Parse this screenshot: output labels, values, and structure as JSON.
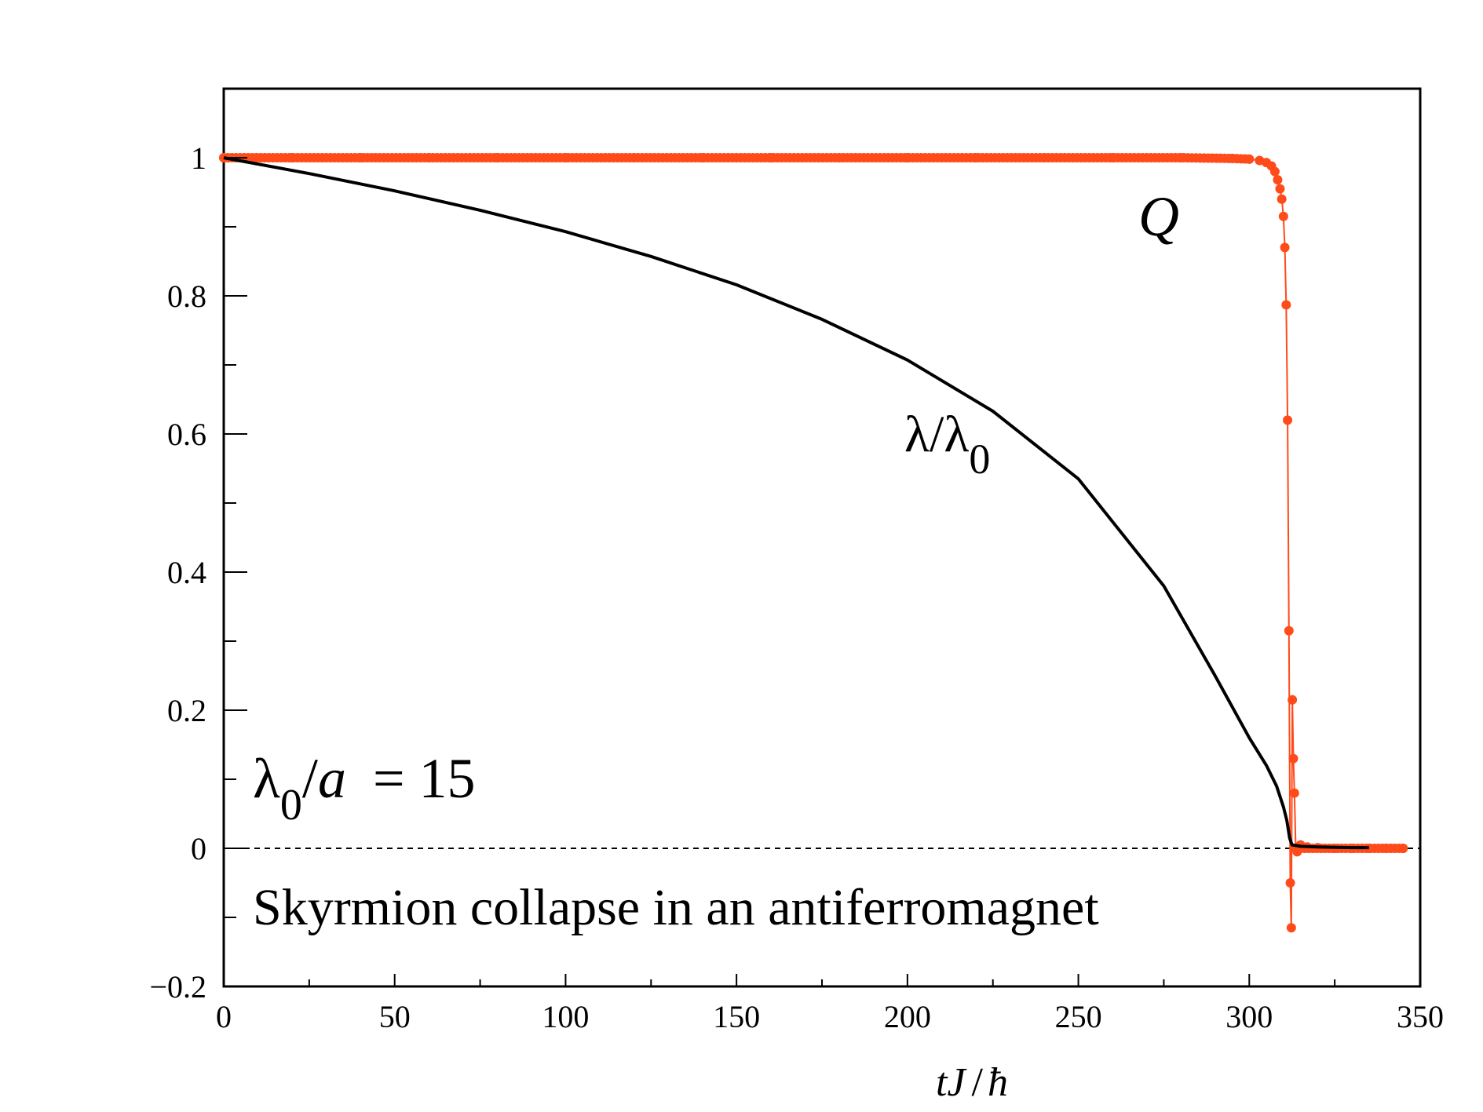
{
  "chart_data": {
    "type": "line",
    "title": "",
    "xlabel": "tJ / ħ",
    "ylabel": "",
    "xlim": [
      0,
      350
    ],
    "ylim": [
      -0.2,
      1.1
    ],
    "x_ticks": [
      0,
      50,
      100,
      150,
      200,
      250,
      300,
      350
    ],
    "x_tick_labels": [
      "0",
      "50",
      "100",
      "150",
      "200",
      "250",
      "300",
      "350"
    ],
    "y_ticks": [
      -0.2,
      0,
      0.2,
      0.4,
      0.6,
      0.8,
      1
    ],
    "y_tick_labels": [
      "−0.2",
      "0",
      "0.2",
      "0.4",
      "0.6",
      "0.8",
      "1"
    ],
    "grid": false,
    "legend": "none",
    "reference_line": {
      "y": 0,
      "style": "dashed",
      "color": "#000000"
    },
    "series": [
      {
        "name": "Q",
        "color": "#ff4a1a",
        "marker": "circle",
        "x": [
          0,
          20,
          40,
          60,
          80,
          100,
          120,
          140,
          160,
          180,
          200,
          220,
          240,
          260,
          280,
          295,
          300,
          303,
          305,
          306.5,
          307.5,
          308.3,
          309,
          309.5,
          310,
          310.4,
          310.8,
          311.2,
          311.6,
          312,
          312.3,
          312.6,
          312.9,
          313.2,
          313.6,
          314,
          315,
          317,
          320,
          325,
          330,
          335,
          340,
          345
        ],
        "values": [
          1,
          1,
          1,
          1,
          1,
          1,
          1,
          1,
          1,
          1,
          1,
          1,
          1,
          1,
          1,
          0.999,
          0.998,
          0.996,
          0.993,
          0.988,
          0.98,
          0.968,
          0.955,
          0.94,
          0.915,
          0.87,
          0.787,
          0.62,
          0.315,
          -0.05,
          -0.115,
          0.215,
          0.13,
          0.08,
          0.0,
          -0.005,
          0.005,
          0.002,
          0.001,
          0.0,
          0.0,
          0.0,
          0.0,
          0.0
        ]
      },
      {
        "name": "λ/λ0",
        "color": "#000000",
        "marker": "none",
        "x": [
          0,
          25,
          50,
          75,
          100,
          125,
          150,
          175,
          200,
          225,
          250,
          275,
          290,
          300,
          305,
          308,
          310,
          311,
          311.8,
          312.5,
          315,
          320,
          330,
          335
        ],
        "values": [
          1,
          0.977,
          0.952,
          0.924,
          0.893,
          0.857,
          0.816,
          0.766,
          0.707,
          0.633,
          0.535,
          0.38,
          0.25,
          0.16,
          0.12,
          0.09,
          0.06,
          0.04,
          0.015,
          0.005,
          0.003,
          0.002,
          0.001,
          0.001
        ]
      }
    ],
    "annotations": {
      "q_label": "Q",
      "lambda_label_main": "λ/λ",
      "lambda_label_sub": "0",
      "ratio_label_lambda": "λ",
      "ratio_label_sub": "0",
      "ratio_label_a": "a",
      "ratio_label_value": "= 15",
      "caption": "Skyrmion collapse in an antiferromagnet"
    },
    "xlabel_parts": {
      "t": "tJ",
      "sep": "/",
      "hbar": "ħ"
    }
  }
}
